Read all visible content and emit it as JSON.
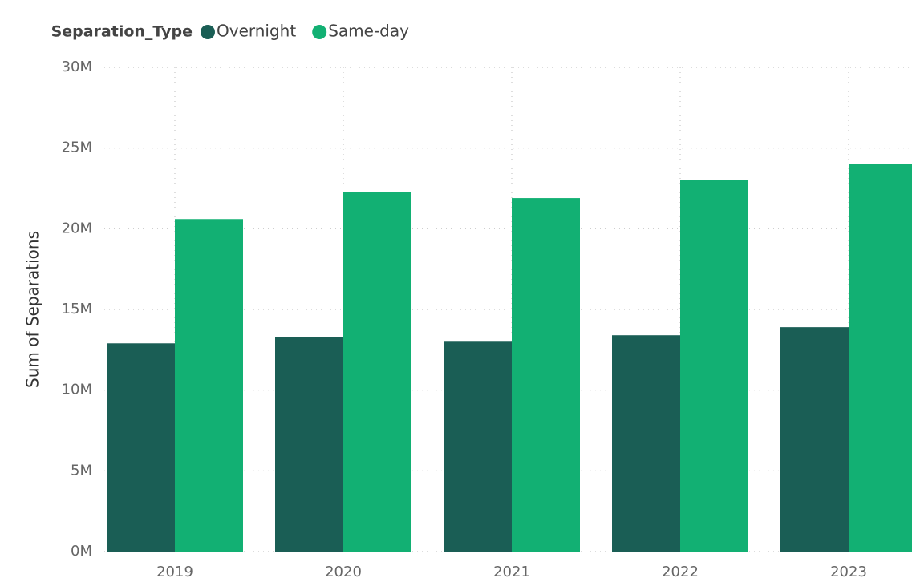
{
  "chart_data": {
    "type": "bar",
    "legend_title": "Separation_Type",
    "y_axis_label": "Sum of Separations",
    "categories": [
      "2019",
      "2020",
      "2021",
      "2022",
      "2023"
    ],
    "series": [
      {
        "name": "Overnight",
        "color": "#1a5e55",
        "values": [
          12900000,
          13300000,
          13000000,
          13400000,
          13900000
        ]
      },
      {
        "name": "Same-day",
        "color": "#12b073",
        "values": [
          20600000,
          22300000,
          21900000,
          23000000,
          24000000
        ]
      }
    ],
    "ylim": [
      0,
      30000000
    ],
    "yticks": [
      {
        "value": 0,
        "label": "0M"
      },
      {
        "value": 5000000,
        "label": "5M"
      },
      {
        "value": 10000000,
        "label": "10M"
      },
      {
        "value": 15000000,
        "label": "15M"
      },
      {
        "value": 20000000,
        "label": "20M"
      },
      {
        "value": 25000000,
        "label": "25M"
      },
      {
        "value": 30000000,
        "label": "30M"
      }
    ],
    "grid": true,
    "legend": "top-left"
  }
}
